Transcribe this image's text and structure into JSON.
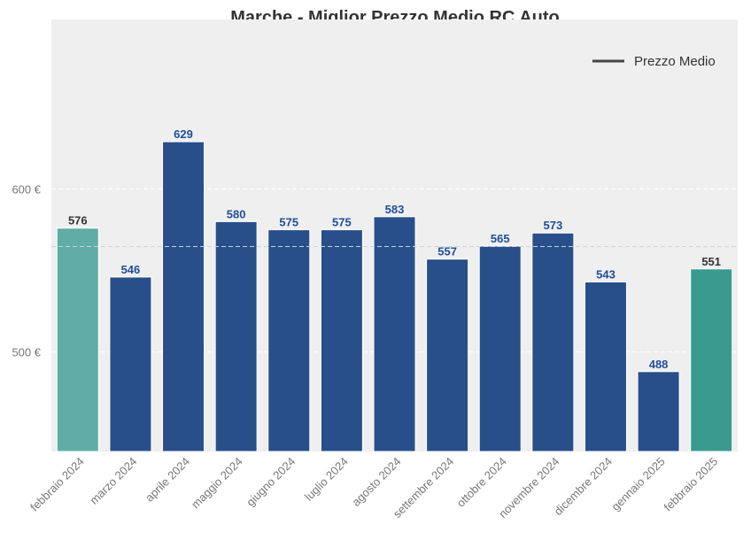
{
  "chart_data": {
    "type": "bar",
    "title": "Marche - Miglior Prezzo Medio RC Auto",
    "xlabel": "",
    "ylabel": "",
    "categories": [
      "febbraio 2024",
      "marzo 2024",
      "aprile 2024",
      "maggio 2024",
      "giugno 2024",
      "luglio 2024",
      "agosto 2024",
      "settembre 2024",
      "ottobre 2024",
      "novembre 2024",
      "dicembre 2024",
      "gennaio 2025",
      "febbraio 2025"
    ],
    "values": [
      576,
      546,
      629,
      580,
      575,
      575,
      583,
      557,
      565,
      573,
      543,
      488,
      551
    ],
    "data_labels": [
      "576",
      "546",
      "629",
      "580",
      "575",
      "575",
      "583",
      "557",
      "565",
      "573",
      "543",
      "488",
      "551"
    ],
    "ylim": [
      439,
      704
    ],
    "yticks": [
      500,
      600
    ],
    "ytick_labels": [
      "500 €",
      "600 €"
    ],
    "mean_line": {
      "value": 564.7,
      "label": "Prezzo Medio"
    },
    "legend": {
      "placement": "top-right",
      "entries": [
        "Prezzo Medio"
      ]
    },
    "grid": true,
    "colors": {
      "first": "#5fada6",
      "last": "#3a9a90",
      "default": "#284f8a",
      "label_default": "#1f4e99",
      "label_highlight": "#333333",
      "background": "#efefef"
    }
  }
}
